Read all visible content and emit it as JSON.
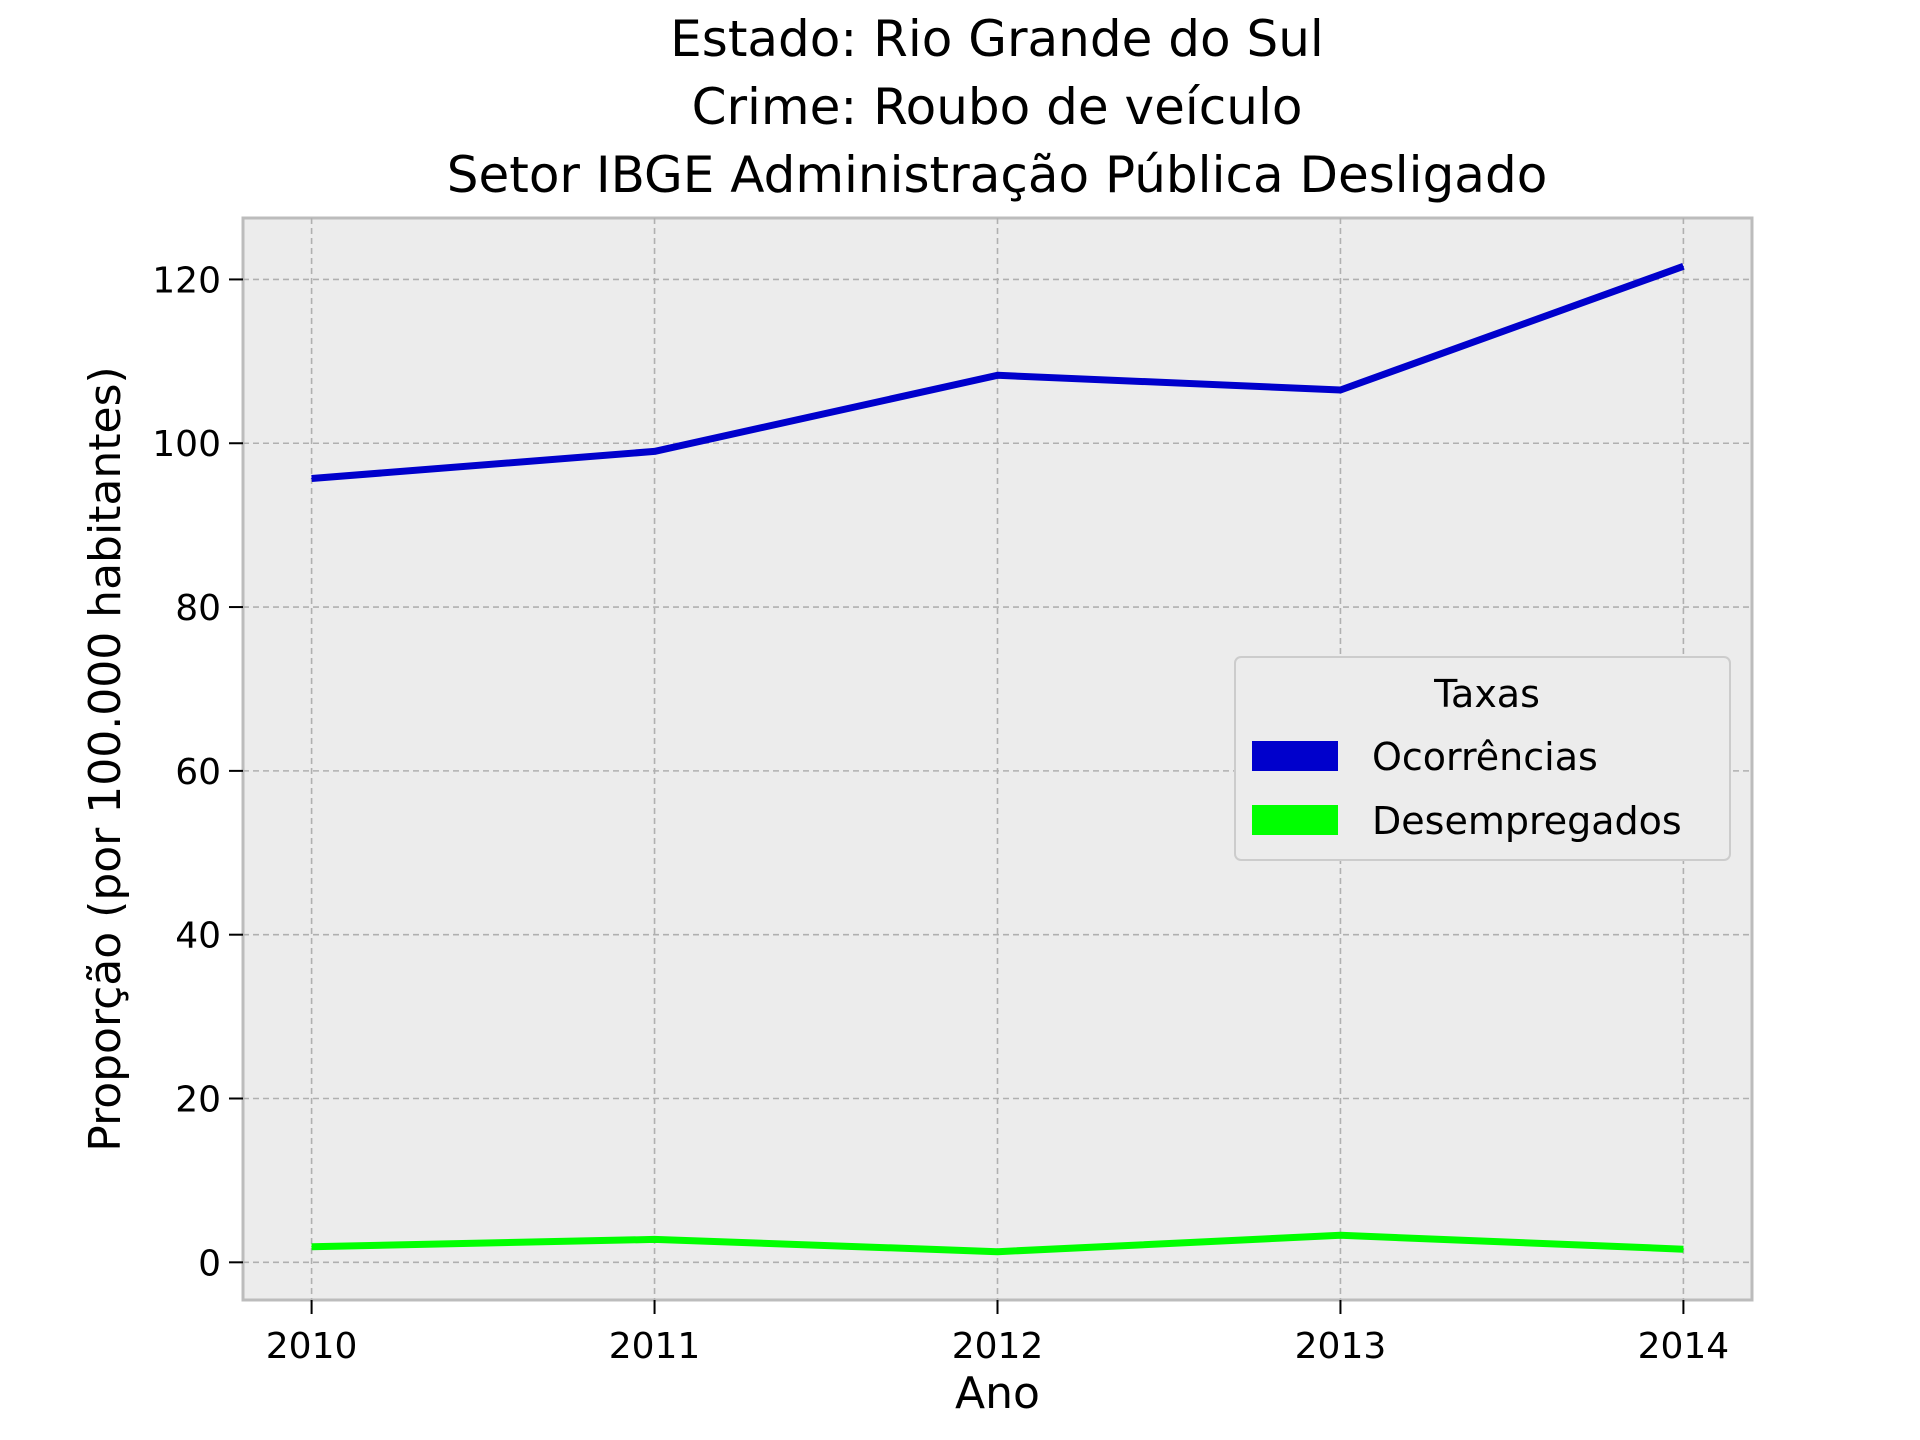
{
  "chart_data": {
    "type": "line",
    "title_lines": [
      "Estado: Rio Grande do Sul",
      "Crime: Roubo de veículo",
      "Setor IBGE  Administração Pública   Desligado"
    ],
    "xlabel": "Ano",
    "ylabel": "Proporção (por 100.000 habitantes)",
    "x": [
      2010,
      2011,
      2012,
      2013,
      2014
    ],
    "x_tick_labels": [
      "2010",
      "2011",
      "2012",
      "2013",
      "2014"
    ],
    "y_ticks": [
      0,
      20,
      40,
      60,
      80,
      100,
      120
    ],
    "y_tick_labels": [
      "0",
      "20",
      "40",
      "60",
      "80",
      "100",
      "120"
    ],
    "xlim": [
      2009.8,
      2014.2
    ],
    "ylim": [
      -4.6,
      127.5
    ],
    "grid": true,
    "legend": {
      "title": "Taxas",
      "placement": "center-right"
    },
    "series": [
      {
        "name": "Ocorrências",
        "color": "#0000cc",
        "values": [
          95.7,
          99.0,
          108.3,
          106.5,
          121.6
        ]
      },
      {
        "name": "Desempregados",
        "color": "#00ff00",
        "values": [
          1.9,
          2.8,
          1.3,
          3.3,
          1.6
        ]
      }
    ]
  }
}
